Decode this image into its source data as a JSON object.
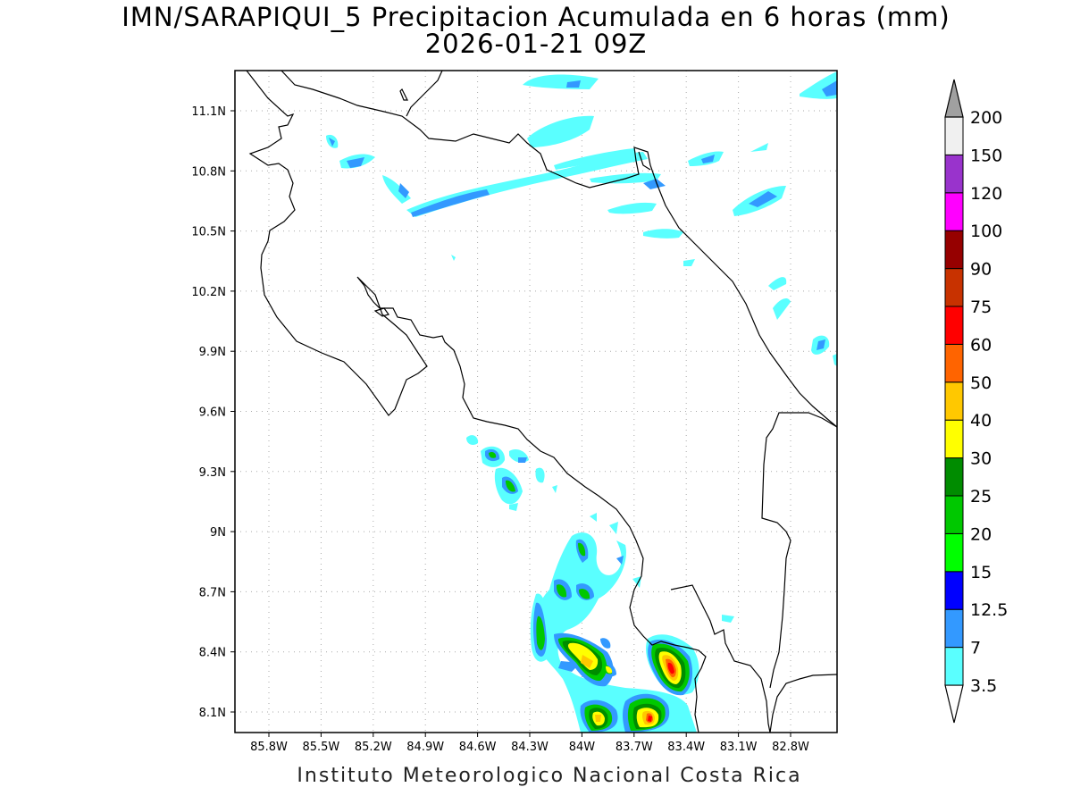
{
  "title": "IMN/SARAPIQUI_5 Precipitacion Acumulada en 6 horas (mm)",
  "subtitle": "2026-01-21 09Z",
  "footer": "Instituto Meteorologico Nacional Costa Rica",
  "map": {
    "lat_labels": [
      "11.1N",
      "10.8N",
      "10.5N",
      "10.2N",
      "9.9N",
      "9.6N",
      "9.3N",
      "9N",
      "8.7N",
      "8.4N",
      "8.1N"
    ],
    "lon_labels": [
      "85.8W",
      "85.5W",
      "85.2W",
      "84.9W",
      "84.6W",
      "84.3W",
      "84W",
      "83.7W",
      "83.4W",
      "83.1W",
      "82.8W"
    ],
    "grid": true,
    "coastline_color": "#000000"
  },
  "colorbar": {
    "levels": [
      "3.5",
      "7",
      "12.5",
      "15",
      "20",
      "25",
      "30",
      "40",
      "50",
      "60",
      "75",
      "90",
      "100",
      "120",
      "150",
      "200"
    ],
    "colors": [
      "#ffffff",
      "#5affff",
      "#3399ff",
      "#0000ff",
      "#00ff00",
      "#00c800",
      "#008c00",
      "#ffff00",
      "#ffc800",
      "#ff6400",
      "#ff0000",
      "#c83200",
      "#960000",
      "#ff00ff",
      "#9933cc",
      "#f0f0f0",
      "#a0a0a0"
    ]
  }
}
